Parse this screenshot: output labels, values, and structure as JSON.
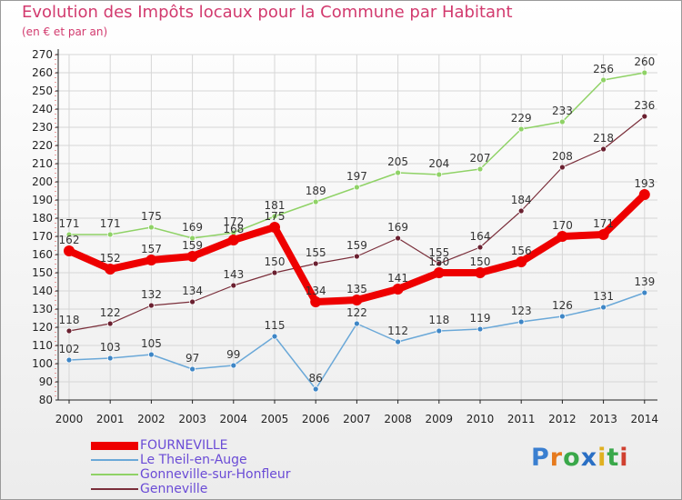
{
  "chart_data": {
    "type": "line",
    "title": "Evolution des Impôts locaux pour la Commune par Habitant",
    "subtitle": "(en € et par an)",
    "categories": [
      "2000",
      "2001",
      "2002",
      "2003",
      "2004",
      "2005",
      "2006",
      "2007",
      "2008",
      "2009",
      "2010",
      "2011",
      "2012",
      "2013",
      "2014"
    ],
    "ylim": [
      80,
      270
    ],
    "yticks": [
      80,
      90,
      100,
      110,
      120,
      130,
      140,
      150,
      160,
      170,
      180,
      190,
      200,
      210,
      220,
      230,
      240,
      250,
      260,
      270
    ],
    "series": [
      {
        "name": "Gonneville-sur-Honfleur",
        "color": "#8fd266",
        "marker": "#8fd266",
        "width": 1.5,
        "radius": 3,
        "values": [
          171,
          171,
          175,
          169,
          172,
          181,
          189,
          197,
          205,
          204,
          207,
          229,
          233,
          256,
          260
        ]
      },
      {
        "name": "Genneville",
        "color": "#7a2e3a",
        "marker": "#6a2030",
        "width": 1.2,
        "radius": 3,
        "values": [
          118,
          122,
          132,
          134,
          143,
          150,
          155,
          159,
          169,
          155,
          164,
          184,
          208,
          218,
          236
        ]
      },
      {
        "name": "Le Theil-en-Auge",
        "color": "#6aa8d8",
        "marker": "#3e86c6",
        "width": 1.5,
        "radius": 3,
        "values": [
          102,
          103,
          105,
          97,
          99,
          115,
          86,
          122,
          112,
          118,
          119,
          123,
          126,
          131,
          139
        ]
      },
      {
        "name": "FOURNEVILLE",
        "color": "#ee0000",
        "marker": "#ee0000",
        "width": 8,
        "radius": 6,
        "values": [
          162,
          152,
          157,
          159,
          168,
          175,
          134,
          135,
          141,
          150,
          150,
          156,
          170,
          171,
          193
        ]
      }
    ],
    "legend_order": [
      "FOURNEVILLE",
      "Le Theil-en-Auge",
      "Gonneville-sur-Honfleur",
      "Genneville"
    ]
  },
  "logo": {
    "text": "Proxiti",
    "letters": [
      "P",
      "r",
      "o",
      "x",
      "i",
      "t",
      "i"
    ],
    "colors": [
      "#3a7fd0",
      "#e67a1e",
      "#3aa84a",
      "#2a6fc4",
      "#e0b020",
      "#3aa84a",
      "#d04030"
    ]
  }
}
